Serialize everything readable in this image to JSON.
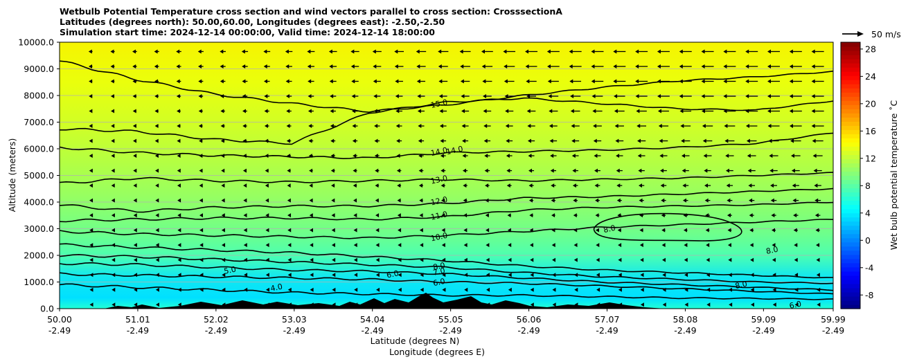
{
  "chart_data": {
    "type": "heatmap",
    "title_lines": [
      "Wetbulb Potential Temperature cross section and wind vectors parallel to cross section: CrosssectionA",
      "Latitudes (degrees north): 50.00,60.00, Longitudes (degrees east): -2.50,-2.50",
      "Simulation start time: 2024-12-14 00:00:00, Valid time: 2024-12-14 18:00:00"
    ],
    "xlabel_1": "Latitude (degrees N)",
    "xlabel_2": "Longitude (degrees E)",
    "ylabel": "Altitude (meters)",
    "colorbar_label": "Wet bulb potential temperature ˚C",
    "quiver_key_label": "50 m/s",
    "x_ticks": [
      {
        "lat": "50.00",
        "lon": "-2.49"
      },
      {
        "lat": "51.01",
        "lon": "-2.49"
      },
      {
        "lat": "52.02",
        "lon": "-2.49"
      },
      {
        "lat": "53.03",
        "lon": "-2.49"
      },
      {
        "lat": "54.04",
        "lon": "-2.49"
      },
      {
        "lat": "55.05",
        "lon": "-2.49"
      },
      {
        "lat": "56.06",
        "lon": "-2.49"
      },
      {
        "lat": "57.07",
        "lon": "-2.49"
      },
      {
        "lat": "58.08",
        "lon": "-2.49"
      },
      {
        "lat": "59.09",
        "lon": "-2.49"
      },
      {
        "lat": "59.99",
        "lon": "-2.49"
      }
    ],
    "y_ticks": [
      "0.0",
      "1000.0",
      "2000.0",
      "3000.0",
      "4000.0",
      "5000.0",
      "6000.0",
      "7000.0",
      "8000.0",
      "9000.0",
      "10000.0"
    ],
    "ylim": [
      0,
      10000
    ],
    "xlim": [
      50.0,
      59.99
    ],
    "colorbar_ticks": [
      "-8",
      "-4",
      "0",
      "4",
      "8",
      "12",
      "16",
      "20",
      "24",
      "28"
    ],
    "colorbar_range": [
      -10,
      29
    ],
    "grid_horizontal": true,
    "colormap": "jet",
    "contours": [
      {
        "level": "4.0",
        "heights": [
          900,
          800,
          700,
          600,
          550,
          500,
          500,
          450,
          400,
          380,
          350
        ]
      },
      {
        "level": "5.0",
        "heights": [
          1300,
          1250,
          1200,
          1150,
          1100,
          1000,
          950,
          850,
          750,
          650,
          550
        ]
      },
      {
        "level": "6.0",
        "heights": [
          1700,
          1650,
          1550,
          1450,
          1400,
          1300,
          1150,
          1000,
          900,
          800,
          700
        ]
      },
      {
        "level": "7.0",
        "heights": [
          2000,
          1950,
          1850,
          1750,
          1650,
          1550,
          1350,
          1200,
          1100,
          1000,
          950
        ]
      },
      {
        "level": "8.0",
        "heights": [
          2400,
          2300,
          2200,
          2100,
          1950,
          1800,
          1600,
          1450,
          1350,
          1250,
          1150
        ]
      },
      {
        "level": "10.0",
        "heights": [
          2900,
          2800,
          2750,
          2700,
          2650,
          2750,
          2900,
          3050,
          3150,
          3250,
          3350
        ]
      },
      {
        "level": "11.0",
        "heights": [
          3300,
          3350,
          3400,
          3400,
          3350,
          3450,
          3700,
          3800,
          3850,
          3900,
          4000
        ]
      },
      {
        "level": "12.0",
        "heights": [
          3900,
          3650,
          3800,
          3850,
          3850,
          3950,
          4150,
          4200,
          4300,
          4400,
          4500
        ]
      },
      {
        "level": "13.0",
        "heights": [
          4700,
          4900,
          4800,
          4750,
          4800,
          4850,
          4800,
          4850,
          4900,
          5000,
          5100
        ]
      },
      {
        "level": "14.0",
        "heights": [
          6050,
          5850,
          5750,
          5700,
          5650,
          5850,
          5900,
          5950,
          6050,
          6200,
          6600
        ]
      },
      {
        "level": "15.0",
        "heights": [
          6750,
          6650,
          6350,
          6200,
          7350,
          7750,
          7900,
          7700,
          7500,
          7450,
          7800
        ]
      },
      {
        "level": "",
        "heights": [
          9300,
          8600,
          8050,
          7700,
          7400,
          7650,
          8000,
          8300,
          8550,
          8700,
          8900
        ]
      }
    ],
    "contour_labels": [
      {
        "text": "15.0",
        "x": 54.9,
        "y": 7700
      },
      {
        "text": "14.0",
        "x": 54.9,
        "y": 5900
      },
      {
        "text": "14.0",
        "x": 55.1,
        "y": 5950
      },
      {
        "text": "13.0",
        "x": 54.9,
        "y": 4850
      },
      {
        "text": "12.0",
        "x": 54.9,
        "y": 4050
      },
      {
        "text": "11.0",
        "x": 54.9,
        "y": 3500
      },
      {
        "text": "10.0",
        "x": 54.9,
        "y": 2700
      },
      {
        "text": "8.0",
        "x": 54.9,
        "y": 1600
      },
      {
        "text": "7.0",
        "x": 54.9,
        "y": 1400
      },
      {
        "text": "6.0",
        "x": 54.3,
        "y": 1300
      },
      {
        "text": "6.0",
        "x": 54.9,
        "y": 1000
      },
      {
        "text": "5.0",
        "x": 52.2,
        "y": 1450
      },
      {
        "text": "4.0",
        "x": 52.8,
        "y": 800
      },
      {
        "text": "8.0",
        "x": 57.1,
        "y": 3000
      },
      {
        "text": "8.0",
        "x": 59.2,
        "y": 2200
      },
      {
        "text": "8.0",
        "x": 58.8,
        "y": 900
      },
      {
        "text": "6.0",
        "x": 59.5,
        "y": 150
      }
    ],
    "wind": "westward (negative) component, speed increasing with height and with latitude"
  }
}
